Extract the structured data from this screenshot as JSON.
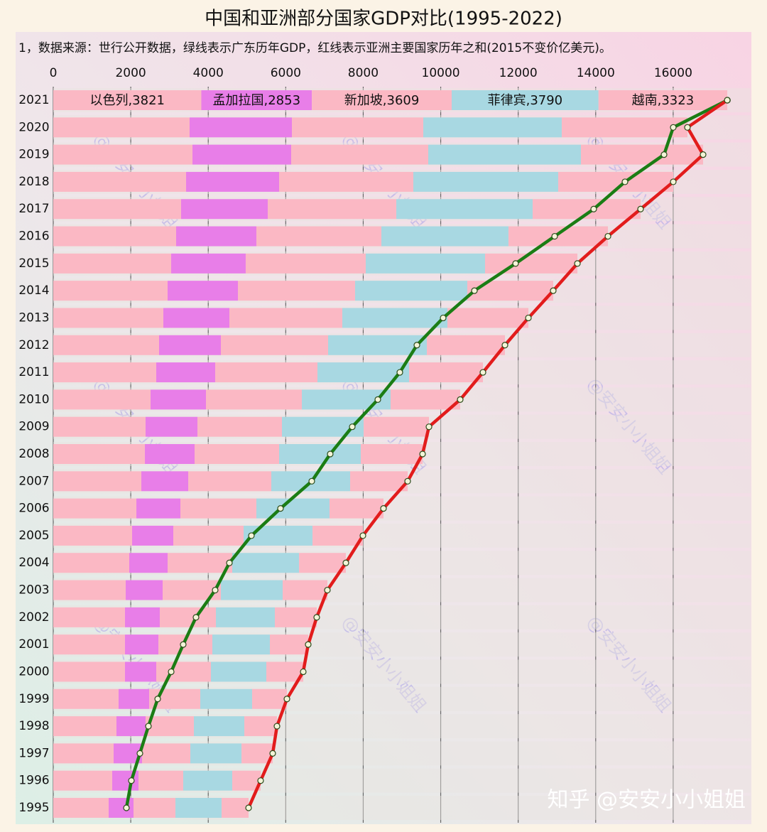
{
  "chart_data": {
    "type": "stacked-barh-line",
    "title": "中国和亚洲部分国家GDP对比(1995-2022)",
    "subtitle": "1，数据来源：世行公开数据，绿线表示广东历年GDP，红线表示亚洲主要国家历年之和(2015不变价亿美元)。",
    "watermark": "@安安小小姐姐",
    "footer_watermark": "知乎 @安安小小姐姐",
    "categories": [
      "2021",
      "2020",
      "2019",
      "2018",
      "2017",
      "2016",
      "2015",
      "2014",
      "2013",
      "2012",
      "2011",
      "2010",
      "2009",
      "2008",
      "2007",
      "2006",
      "2005",
      "2004",
      "2003",
      "2002",
      "2001",
      "2000",
      "1999",
      "1998",
      "1997",
      "1996",
      "1995"
    ],
    "xlim": [
      0,
      18000
    ],
    "xticks": [
      0,
      2000,
      4000,
      6000,
      8000,
      10000,
      12000,
      14000,
      16000
    ],
    "grid": true,
    "series": [
      {
        "color": "#fbb8c4",
        "values": [
          3821,
          3519,
          3593,
          3428,
          3299,
          3171,
          3043,
          2951,
          2841,
          2731,
          2658,
          2511,
          2383,
          2365,
          2273,
          2145,
          2035,
          1961,
          1870,
          1851,
          1851,
          1851,
          1686,
          1631,
          1558,
          1521,
          1430
        ],
        "value_labels": [
          "以色列,3821",
          null,
          null,
          null,
          null,
          null,
          null,
          null,
          null,
          null,
          null,
          null,
          null,
          null,
          null,
          null,
          null,
          null,
          null,
          null,
          null,
          null,
          null,
          null,
          null,
          null,
          null
        ]
      },
      {
        "color": "#e87ee8",
        "values": [
          2853,
          2640,
          2548,
          2401,
          2237,
          2071,
          1924,
          1815,
          1705,
          1595,
          1521,
          1430,
          1338,
          1283,
          1210,
          1136,
          1063,
          990,
          953,
          899,
          862,
          807,
          789,
          752,
          733,
          679,
          641
        ],
        "value_labels": [
          "孟加拉国,2853",
          null,
          null,
          null,
          null,
          null,
          null,
          null,
          null,
          null,
          null,
          null,
          null,
          null,
          null,
          null,
          null,
          null,
          null,
          null,
          null,
          null,
          null,
          null,
          null,
          null,
          null
        ]
      },
      {
        "color": "#fbb8c4",
        "values": [
          3609,
          3391,
          3537,
          3464,
          3318,
          3226,
          3098,
          3024,
          2914,
          2768,
          2640,
          2475,
          2181,
          2181,
          2144,
          1961,
          1815,
          1668,
          1503,
          1448,
          1393,
          1411,
          1319,
          1246,
          1247,
          1154,
          1082
        ],
        "value_labels": [
          "新加坡,3609",
          null,
          null,
          null,
          null,
          null,
          null,
          null,
          null,
          null,
          null,
          null,
          null,
          null,
          null,
          null,
          null,
          null,
          null,
          null,
          null,
          null,
          null,
          null,
          null,
          null,
          null
        ]
      },
      {
        "color": "#a8d8e2",
        "values": [
          3790,
          3574,
          3941,
          3739,
          3519,
          3281,
          3080,
          2896,
          2713,
          2548,
          2365,
          2291,
          2109,
          2108,
          2035,
          1888,
          1778,
          1724,
          1595,
          1521,
          1485,
          1430,
          1338,
          1302,
          1320,
          1265,
          1191
        ],
        "value_labels": [
          "菲律宾,3790",
          null,
          null,
          null,
          null,
          null,
          null,
          null,
          null,
          null,
          null,
          null,
          null,
          null,
          null,
          null,
          null,
          null,
          null,
          null,
          null,
          null,
          null,
          null,
          null,
          null,
          null
        ]
      },
      {
        "color": "#fbb8c4",
        "values": [
          3323,
          3244,
          3153,
          2970,
          2786,
          2567,
          2383,
          2218,
          2090,
          2016,
          1906,
          1796,
          1686,
          1595,
          1485,
          1393,
          1301,
          1209,
          1154,
          1081,
          989,
          953,
          899,
          843,
          806,
          733,
          697
        ],
        "value_labels": [
          "越南,3323",
          null,
          null,
          null,
          null,
          null,
          null,
          null,
          null,
          null,
          null,
          null,
          null,
          null,
          null,
          null,
          null,
          null,
          null,
          null,
          null,
          null,
          null,
          null,
          null,
          null,
          null
        ]
      }
    ],
    "lines": [
      {
        "color": "#1b7d14",
        "values": [
          17400,
          16002,
          15764,
          14756,
          13949,
          12941,
          11933,
          10870,
          10063,
          9385,
          8945,
          8377,
          7717,
          7148,
          6672,
          5865,
          5114,
          4546,
          4179,
          3684,
          3354,
          3043,
          2695,
          2456,
          2236,
          2016,
          1888
        ]
      },
      {
        "color": "#e21c1c",
        "values": [
          17396,
          16368,
          16772,
          16002,
          15159,
          14316,
          13528,
          12904,
          12263,
          11658,
          11090,
          10503,
          9697,
          9532,
          9147,
          8523,
          7992,
          7552,
          7075,
          6800,
          6580,
          6452,
          6031,
          5774,
          5664,
          5352,
          5041
        ]
      }
    ]
  }
}
